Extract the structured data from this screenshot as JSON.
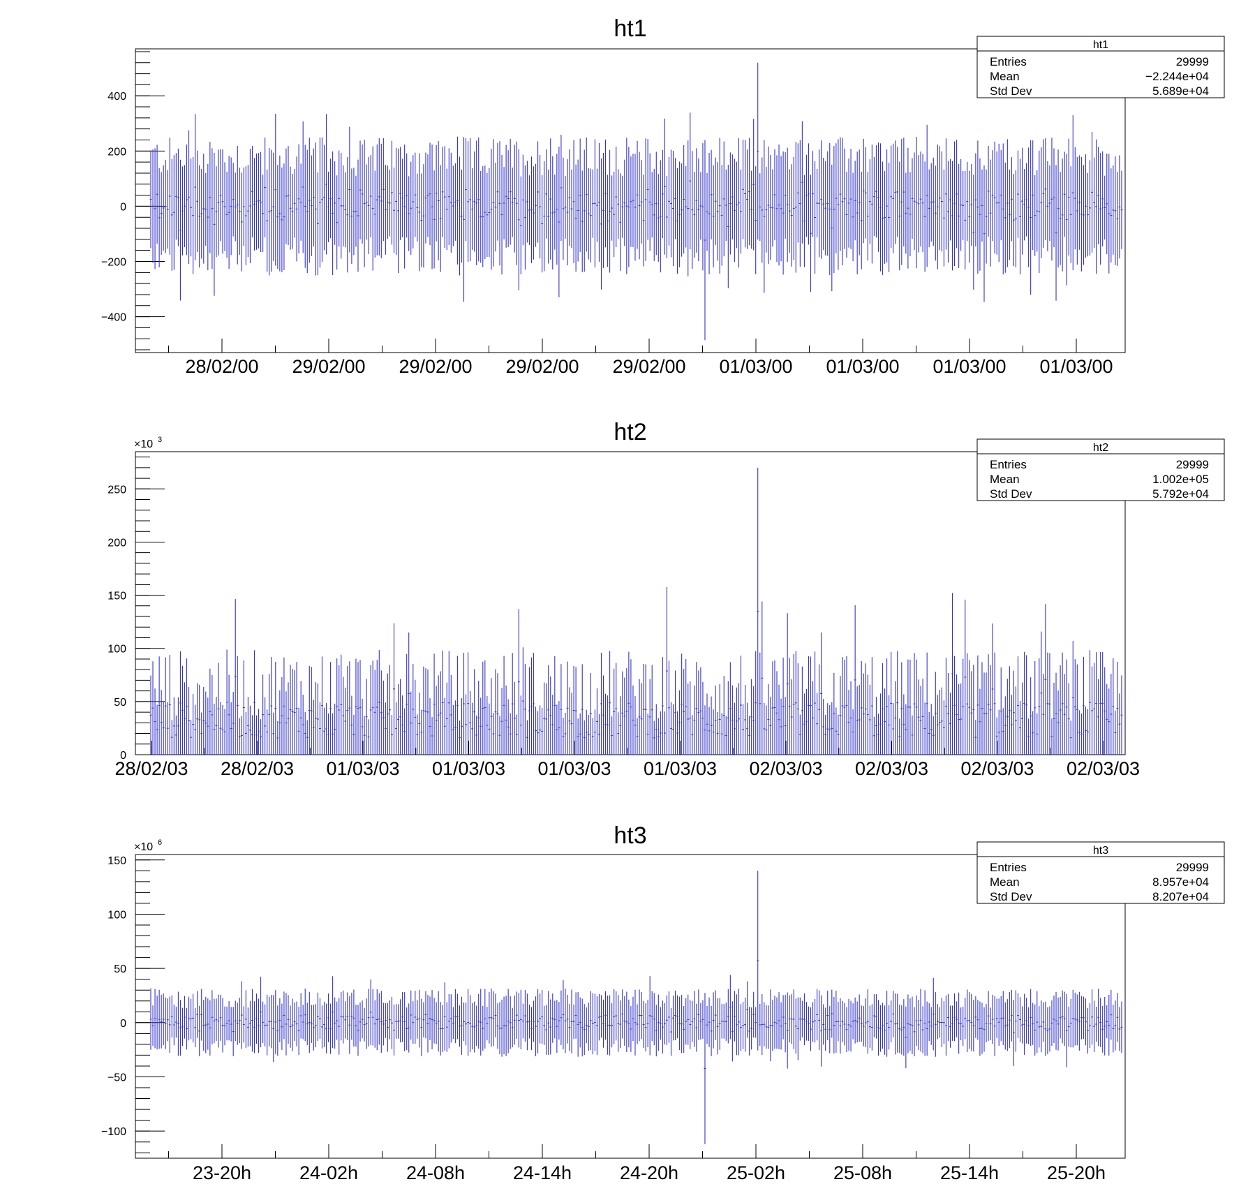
{
  "chart_data": [
    {
      "type": "histogram",
      "title": "ht1",
      "ylim": [
        -530,
        570
      ],
      "y_ticks": [
        {
          "value": 400,
          "label": "400"
        },
        {
          "value": 200,
          "label": "200"
        },
        {
          "value": 0,
          "label": "0"
        },
        {
          "value": -200,
          "label": "−200"
        },
        {
          "value": -400,
          "label": "−400"
        }
      ],
      "y_multiplier": "",
      "x_tick_labels": [
        "28/02/00",
        "29/02/00",
        "29/02/00",
        "29/02/00",
        "29/02/00",
        "01/03/00",
        "01/03/00",
        "01/03/00",
        "01/03/00"
      ],
      "stats": {
        "name": "ht1",
        "entries": "29999",
        "mean": "−2.244e+04",
        "std_dev": "5.689e+04"
      },
      "series_color": "#3333cc",
      "envelope": {
        "upper": 240,
        "lower": -240,
        "peak_max": 520,
        "peak_min": -485
      }
    },
    {
      "type": "histogram",
      "title": "ht2",
      "ylim": [
        0,
        285
      ],
      "y_ticks": [
        {
          "value": 250,
          "label": "250"
        },
        {
          "value": 200,
          "label": "200"
        },
        {
          "value": 150,
          "label": "150"
        },
        {
          "value": 100,
          "label": "100"
        },
        {
          "value": 50,
          "label": "50"
        },
        {
          "value": 0,
          "label": "0"
        }
      ],
      "y_multiplier": "×10",
      "y_multiplier_exp": "3",
      "x_tick_labels": [
        "28/02/03",
        "28/02/03",
        "01/03/03",
        "01/03/03",
        "01/03/03",
        "01/03/03",
        "02/03/03",
        "02/03/03",
        "02/03/03",
        "02/03/03"
      ],
      "stats": {
        "name": "ht2",
        "entries": "29999",
        "mean": "1.002e+05",
        "std_dev": "5.792e+04"
      },
      "series_color": "#3333cc",
      "envelope": {
        "upper": 90,
        "lower": 0,
        "peak_max": 270,
        "peak_min": 0
      }
    },
    {
      "type": "histogram",
      "title": "ht3",
      "ylim": [
        -125,
        155
      ],
      "y_ticks": [
        {
          "value": 150,
          "label": "150"
        },
        {
          "value": 100,
          "label": "100"
        },
        {
          "value": 50,
          "label": "50"
        },
        {
          "value": 0,
          "label": "0"
        },
        {
          "value": -50,
          "label": "−50"
        },
        {
          "value": -100,
          "label": "−100"
        }
      ],
      "y_multiplier": "×10",
      "y_multiplier_exp": "6",
      "x_tick_labels": [
        "23-20h",
        "24-02h",
        "24-08h",
        "24-14h",
        "24-20h",
        "25-02h",
        "25-08h",
        "25-14h",
        "25-20h"
      ],
      "stats": {
        "name": "ht3",
        "entries": "29999",
        "mean": "8.957e+04",
        "std_dev": "8.207e+04"
      },
      "series_color": "#3333cc",
      "envelope": {
        "upper": 30,
        "lower": -30,
        "peak_max": 140,
        "peak_min": -112
      }
    }
  ],
  "stats_labels": {
    "entries": "Entries",
    "mean": "Mean",
    "std_dev": "Std Dev"
  }
}
